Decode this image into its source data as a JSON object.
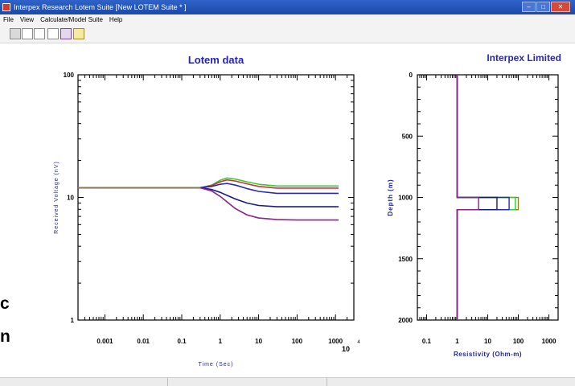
{
  "window": {
    "title": "Interpex Research Lotem Suite [New LOTEM Suite *     ]"
  },
  "menu": [
    {
      "label": "File"
    },
    {
      "label": "View"
    },
    {
      "label": "Calculate/Model Suite"
    },
    {
      "label": "Help"
    }
  ],
  "toolbar": {
    "icons": [
      "printer-icon",
      "window-icon",
      "single-window-icon",
      "multi-window-icon",
      "pen-icon",
      "info-icon"
    ]
  },
  "left_panel_text": [
    "c",
    "n"
  ],
  "branding": "Interpex Limited",
  "chart_data": [
    {
      "type": "line",
      "title": "Lotem data",
      "xlabel": "Time (Sec)",
      "ylabel": "Received Voltage (nV)",
      "x_scale": "log",
      "y_scale": "log",
      "xlim": [
        0.0002,
        3000
      ],
      "ylim": [
        1,
        100
      ],
      "x_ticks": [
        0.001,
        0.01,
        0.1,
        1,
        10,
        100,
        1000
      ],
      "x_tick_labels": [
        "0.001",
        "0.01",
        "0.1",
        "1",
        "10",
        "100",
        "1000"
      ],
      "y_ticks": [
        1,
        10,
        100
      ],
      "y_tick_labels": [
        "1",
        "10",
        "100"
      ],
      "extra_label": "10",
      "extra_label_superscript": "4",
      "series": [
        {
          "color": "#33cc33",
          "x": [
            0.0002,
            0.3,
            0.6,
            1,
            1.5,
            2.5,
            5,
            10,
            30,
            100,
            1200
          ],
          "y": [
            12,
            12,
            12.6,
            13.8,
            14.4,
            14.1,
            13.4,
            12.8,
            12.4,
            12.4,
            12.4
          ]
        },
        {
          "color": "#cc3333",
          "x": [
            0.0002,
            0.3,
            0.6,
            1,
            1.5,
            2.5,
            5,
            10,
            30,
            100,
            1200
          ],
          "y": [
            12,
            12,
            12.5,
            13.4,
            13.9,
            13.6,
            12.9,
            12.3,
            11.9,
            11.9,
            11.9
          ]
        },
        {
          "color": "#2a2ab0",
          "x": [
            0.0002,
            0.3,
            0.6,
            1,
            1.5,
            2.5,
            5,
            10,
            30,
            100,
            1200
          ],
          "y": [
            12,
            12,
            12.3,
            12.8,
            13.0,
            12.6,
            11.8,
            11.2,
            10.8,
            10.8,
            10.8
          ]
        },
        {
          "color": "#1a1a80",
          "x": [
            0.0002,
            0.3,
            0.6,
            1,
            1.5,
            2.5,
            5,
            10,
            30,
            100,
            1200
          ],
          "y": [
            12,
            12,
            11.6,
            11.0,
            10.4,
            9.7,
            9.0,
            8.6,
            8.4,
            8.4,
            8.4
          ]
        },
        {
          "color": "#882288",
          "x": [
            0.0002,
            0.3,
            0.6,
            1,
            1.5,
            2.5,
            5,
            10,
            30,
            100,
            1200
          ],
          "y": [
            12,
            12,
            11.3,
            10.2,
            9.2,
            8.1,
            7.2,
            6.8,
            6.6,
            6.55,
            6.55
          ]
        },
        {
          "color": "#8a8a1a",
          "x": [
            0.0002,
            0.3
          ],
          "y": [
            12,
            12
          ]
        }
      ]
    },
    {
      "type": "line",
      "title": "",
      "xlabel": "Resistivity (Ohm-m)",
      "ylabel": "Depth (m)",
      "x_scale": "log",
      "xlim": [
        0.05,
        2000
      ],
      "ylim": [
        2000,
        0
      ],
      "x_ticks": [
        0.1,
        1,
        10,
        100,
        1000
      ],
      "x_tick_labels": [
        "0.1",
        "1",
        "10",
        "100",
        "1000"
      ],
      "y_ticks": [
        0,
        500,
        1000,
        1500,
        2000
      ],
      "y_tick_labels": [
        "0",
        "500",
        "1000",
        "1500",
        "2000"
      ],
      "series": [
        {
          "color": "#8a8a1a",
          "x": [
            1,
            1,
            100,
            100,
            1,
            1
          ],
          "y": [
            0,
            1000,
            1000,
            1100,
            1100,
            2000
          ]
        },
        {
          "color": "#33cc33",
          "x": [
            1,
            1,
            80,
            80,
            1,
            1
          ],
          "y": [
            0,
            1000,
            1000,
            1100,
            1100,
            2000
          ]
        },
        {
          "color": "#2a2ab0",
          "x": [
            1,
            1,
            50,
            50,
            1,
            1
          ],
          "y": [
            0,
            1000,
            1000,
            1100,
            1100,
            2000
          ]
        },
        {
          "color": "#1a1a80",
          "x": [
            1,
            1,
            20,
            20,
            1,
            1
          ],
          "y": [
            0,
            1000,
            1000,
            1100,
            1100,
            2000
          ]
        },
        {
          "color": "#882288",
          "x": [
            1,
            1,
            5,
            5,
            1,
            1
          ],
          "y": [
            0,
            1000,
            1000,
            1100,
            1100,
            2000
          ]
        }
      ]
    }
  ]
}
